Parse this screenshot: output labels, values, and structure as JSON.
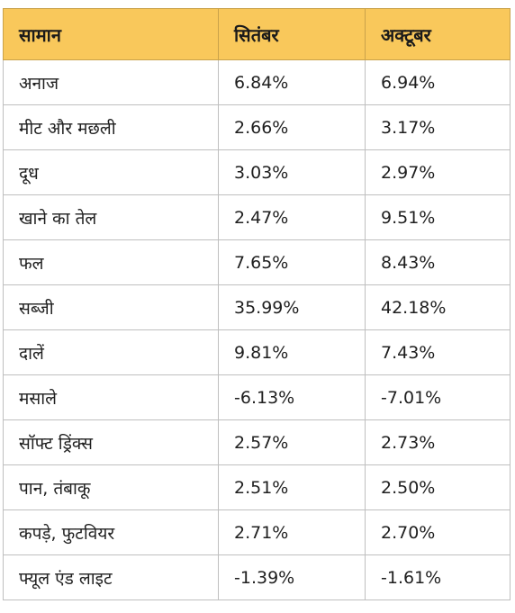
{
  "table": {
    "headers": [
      "सामान",
      "सितंबर",
      "अक्टूबर"
    ],
    "rows": [
      [
        "अनाज",
        "6.84%",
        "6.94%"
      ],
      [
        "मीट और मछली",
        "2.66%",
        "3.17%"
      ],
      [
        "दूध",
        "3.03%",
        "2.97%"
      ],
      [
        "खाने का तेल",
        "2.47%",
        "9.51%"
      ],
      [
        "फल",
        "7.65%",
        "8.43%"
      ],
      [
        "सब्जी",
        "35.99%",
        "42.18%"
      ],
      [
        "दालें",
        "9.81%",
        "7.43%"
      ],
      [
        "मसाले",
        "-6.13%",
        "-7.01%"
      ],
      [
        "सॉफ्ट ड्रिंक्स",
        "2.57%",
        "2.73%"
      ],
      [
        "पान, तंबाकू",
        "2.51%",
        "2.50%"
      ],
      [
        "कपड़े, फुटवियर",
        "2.71%",
        "2.70%"
      ],
      [
        "फ्यूल एंड लाइट",
        "-1.39%",
        "-1.61%"
      ]
    ]
  },
  "colors": {
    "header_bg": "#f9c85b",
    "border": "#bfbfbf"
  }
}
